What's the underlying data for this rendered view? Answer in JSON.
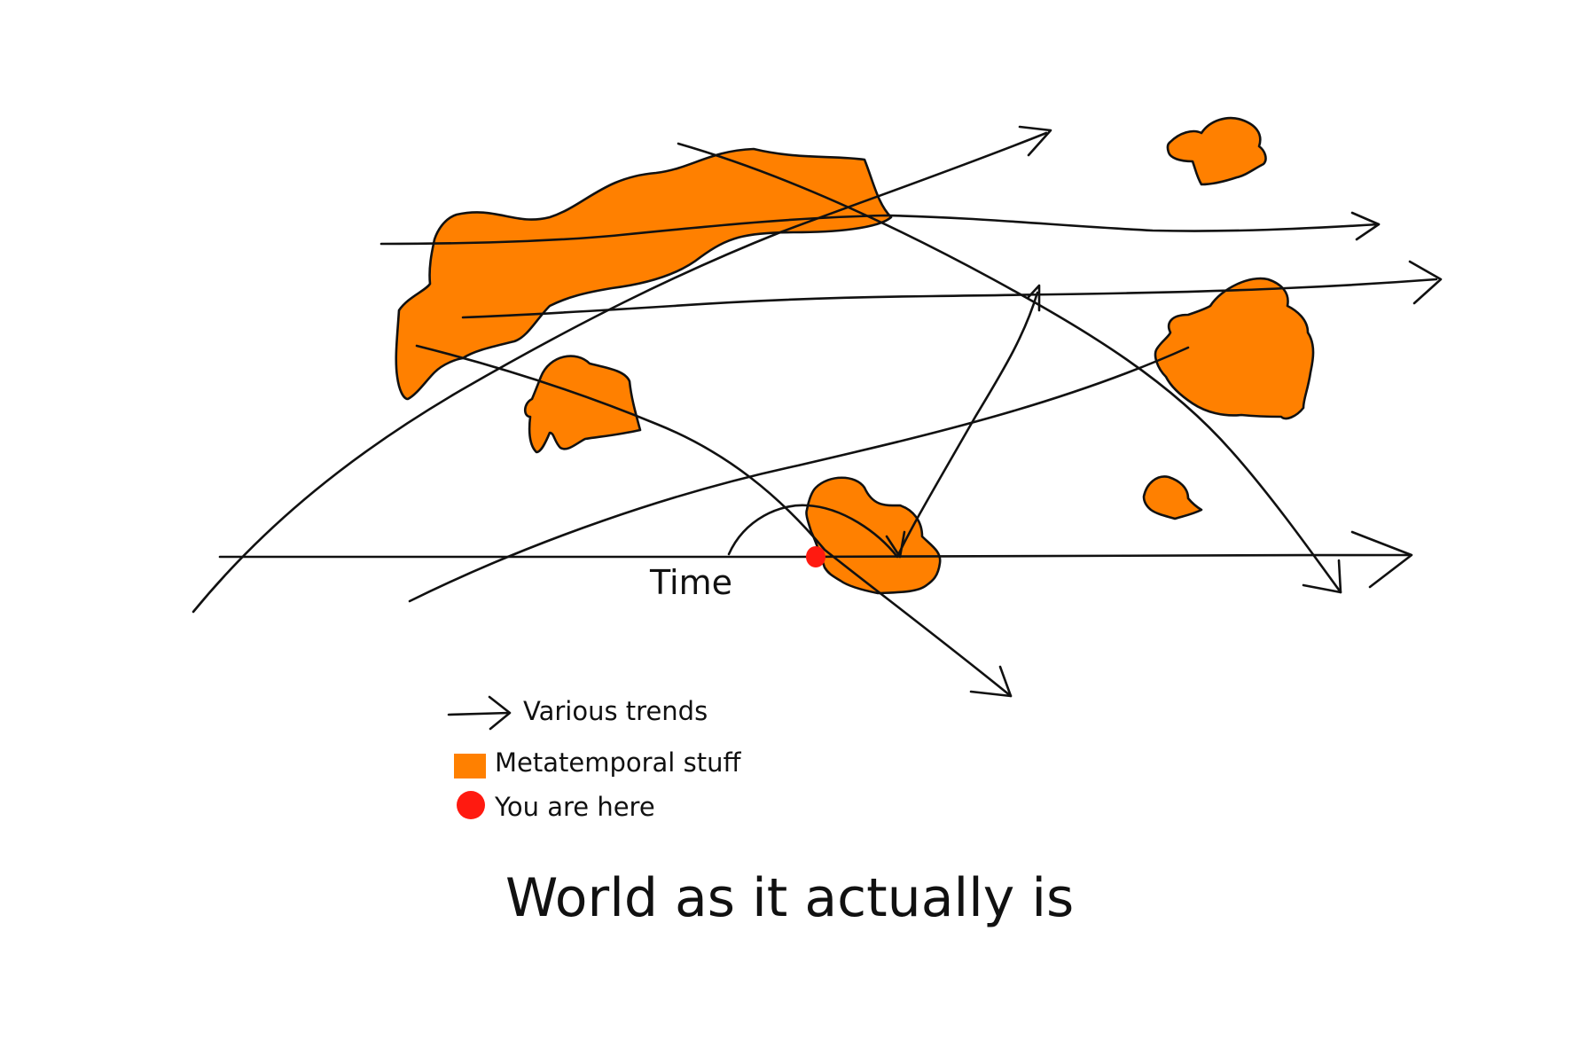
{
  "colors": {
    "metatemporal": "#ff8000",
    "you_are_here": "#ff1a10",
    "ink": "#111111"
  },
  "axis": {
    "label": "Time"
  },
  "legend": {
    "items": [
      {
        "icon": "arrow-icon",
        "label": "Various trends"
      },
      {
        "icon": "orange-square-icon",
        "label": "Metatemporal stuff"
      },
      {
        "icon": "red-dot-icon",
        "label": "You are here"
      }
    ]
  },
  "caption": "World as it actually is"
}
